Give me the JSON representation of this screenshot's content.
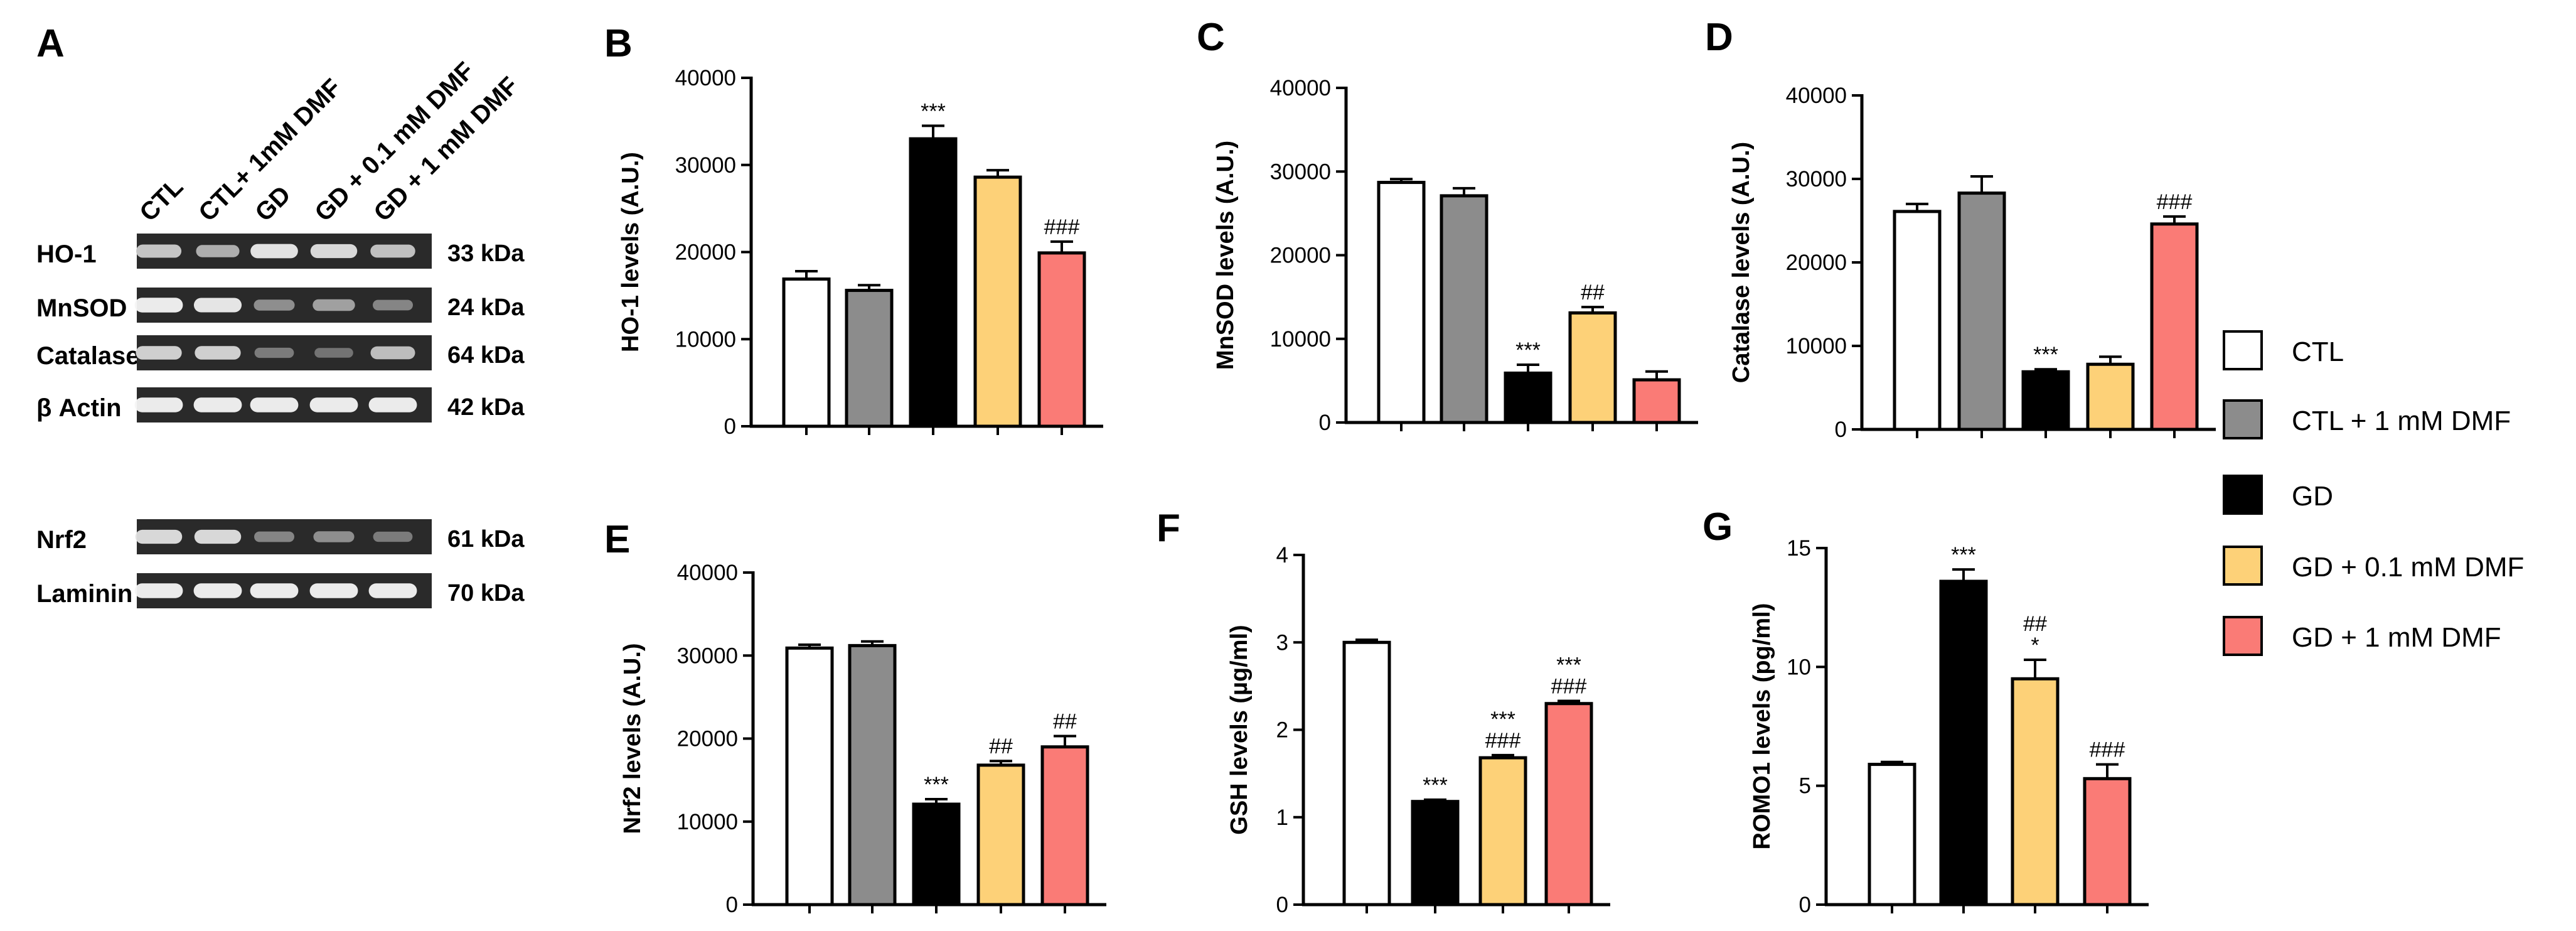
{
  "colors": {
    "ctl": "#ffffff",
    "ctl_dmf": "#8c8c8c",
    "gd": "#000000",
    "gd_01dmf": "#fdd178",
    "gd_1dmf": "#fa7b76",
    "blot_bg": "#2a2a2a",
    "band": "#e6e6e6"
  },
  "panelA": {
    "letter": "A",
    "lanes": [
      "CTL",
      "CTL+ 1mM DMF",
      "GD",
      "GD + 0.1 mM DMF",
      "GD + 1 mM DMF"
    ],
    "blots": [
      {
        "name": "HO-1",
        "kda": "33 kDa",
        "intensity": [
          0.75,
          0.62,
          0.9,
          0.85,
          0.72
        ]
      },
      {
        "name": "MnSOD",
        "kda": "24 kDa",
        "intensity": [
          0.95,
          0.92,
          0.45,
          0.55,
          0.4
        ]
      },
      {
        "name": "Catalase",
        "kda": "64 kDa",
        "intensity": [
          0.8,
          0.8,
          0.35,
          0.3,
          0.7
        ]
      },
      {
        "name": "β Actin",
        "kda": "42 kDa",
        "intensity": [
          0.95,
          0.95,
          0.95,
          0.95,
          0.95
        ]
      },
      {
        "name": "Nrf2",
        "kda": "61 kDa",
        "intensity": [
          0.85,
          0.85,
          0.4,
          0.45,
          0.35
        ]
      },
      {
        "name": "Laminin",
        "kda": "70 kDa",
        "intensity": [
          0.95,
          0.95,
          0.95,
          0.95,
          0.95
        ]
      }
    ]
  },
  "legend": [
    {
      "label": "CTL",
      "key": "ctl"
    },
    {
      "label": "CTL + 1 mM DMF",
      "key": "ctl_dmf"
    },
    {
      "label": "GD",
      "key": "gd"
    },
    {
      "label": "GD + 0.1 mM DMF",
      "key": "gd_01dmf"
    },
    {
      "label": "GD + 1 mM DMF",
      "key": "gd_1dmf"
    }
  ],
  "chart_data": [
    {
      "panel": "B",
      "type": "bar",
      "ylabel": "HO-1 levels (A.U.)",
      "ylim": [
        0,
        40000
      ],
      "ticks": [
        0,
        10000,
        20000,
        30000,
        40000
      ],
      "tick_labels": [
        "0",
        "10000",
        "20000",
        "30000",
        "40000"
      ],
      "categories": [
        "CTL",
        "CTL + 1 mM DMF",
        "GD",
        "GD + 0.1 mM DMF",
        "GD + 1 mM DMF"
      ],
      "keys": [
        "ctl",
        "ctl_dmf",
        "gd",
        "gd_01dmf",
        "gd_1dmf"
      ],
      "values": [
        16900,
        15600,
        33000,
        28600,
        19900
      ],
      "errors": [
        900,
        600,
        1500,
        800,
        1300
      ],
      "annotations": [
        [],
        [],
        [
          "***"
        ],
        [],
        [
          "###"
        ]
      ]
    },
    {
      "panel": "C",
      "type": "bar",
      "ylabel": "MnSOD levels (A.U.)",
      "ylim": [
        0,
        40000
      ],
      "ticks": [
        0,
        10000,
        20000,
        30000,
        40000
      ],
      "tick_labels": [
        "0",
        "10000",
        "20000",
        "30000",
        "40000"
      ],
      "categories": [
        "CTL",
        "CTL + 1 mM DMF",
        "GD",
        "GD + 0.1 mM DMF",
        "GD + 1 mM DMF"
      ],
      "keys": [
        "ctl",
        "ctl_dmf",
        "gd",
        "gd_01dmf",
        "gd_1dmf"
      ],
      "values": [
        28700,
        27100,
        5900,
        13100,
        5100
      ],
      "errors": [
        400,
        900,
        1000,
        700,
        1000
      ],
      "annotations": [
        [],
        [],
        [
          "***"
        ],
        [
          "##"
        ],
        []
      ]
    },
    {
      "panel": "D",
      "type": "bar",
      "ylabel": "Catalase levels (A.U.)",
      "ylim": [
        0,
        40000
      ],
      "ticks": [
        0,
        10000,
        20000,
        30000,
        40000
      ],
      "tick_labels": [
        "0",
        "10000",
        "20000",
        "30000",
        "40000"
      ],
      "categories": [
        "CTL",
        "CTL + 1 mM DMF",
        "GD",
        "GD + 0.1 mM DMF",
        "GD + 1 mM DMF"
      ],
      "keys": [
        "ctl",
        "ctl_dmf",
        "gd",
        "gd_01dmf",
        "gd_1dmf"
      ],
      "values": [
        26100,
        28300,
        6900,
        7800,
        24600
      ],
      "errors": [
        900,
        2000,
        300,
        900,
        900
      ],
      "annotations": [
        [],
        [],
        [
          "***"
        ],
        [],
        [
          "###"
        ]
      ]
    },
    {
      "panel": "E",
      "type": "bar",
      "ylabel": "Nrf2 levels (A.U.)",
      "ylim": [
        0,
        40000
      ],
      "ticks": [
        0,
        10000,
        20000,
        30000,
        40000
      ],
      "tick_labels": [
        "0",
        "10000",
        "20000",
        "30000",
        "40000"
      ],
      "categories": [
        "CTL",
        "CTL + 1 mM DMF",
        "GD",
        "GD + 0.1 mM DMF",
        "GD + 1 mM DMF"
      ],
      "keys": [
        "ctl",
        "ctl_dmf",
        "gd",
        "gd_01dmf",
        "gd_1dmf"
      ],
      "values": [
        30900,
        31200,
        12100,
        16800,
        19000
      ],
      "errors": [
        400,
        500,
        600,
        500,
        1300
      ],
      "annotations": [
        [],
        [],
        [
          "***"
        ],
        [
          "##"
        ],
        [
          "##"
        ]
      ]
    },
    {
      "panel": "F",
      "type": "bar",
      "ylabel": "GSH levels (µg/ml)",
      "ylim": [
        0,
        4
      ],
      "ticks": [
        0,
        1,
        2,
        3,
        4
      ],
      "tick_labels": [
        "0",
        "1",
        "2",
        "3",
        "4"
      ],
      "categories": [
        "CTL",
        "GD",
        "GD + 0.1 mM DMF",
        "GD + 1 mM DMF"
      ],
      "keys": [
        "ctl",
        "gd",
        "gd_01dmf",
        "gd_1dmf"
      ],
      "values": [
        3.0,
        1.18,
        1.68,
        2.3
      ],
      "errors": [
        0.03,
        0.02,
        0.03,
        0.03
      ],
      "annotations": [
        [],
        [
          "***"
        ],
        [
          "***",
          "###"
        ],
        [
          "***",
          "###"
        ]
      ]
    },
    {
      "panel": "G",
      "type": "bar",
      "ylabel": "ROMO1 levels (pg/ml)",
      "ylim": [
        0,
        15
      ],
      "ticks": [
        0,
        5,
        10,
        15
      ],
      "tick_labels": [
        "0",
        "5",
        "10",
        "15"
      ],
      "categories": [
        "CTL",
        "GD",
        "GD + 0.1 mM DMF",
        "GD + 1 mM DMF"
      ],
      "keys": [
        "ctl",
        "gd",
        "gd_01dmf",
        "gd_1dmf"
      ],
      "values": [
        5.9,
        13.6,
        9.5,
        5.3
      ],
      "errors": [
        0.1,
        0.5,
        0.8,
        0.6
      ],
      "annotations": [
        [],
        [
          "***"
        ],
        [
          "##",
          "*"
        ],
        [
          "###"
        ]
      ]
    }
  ]
}
